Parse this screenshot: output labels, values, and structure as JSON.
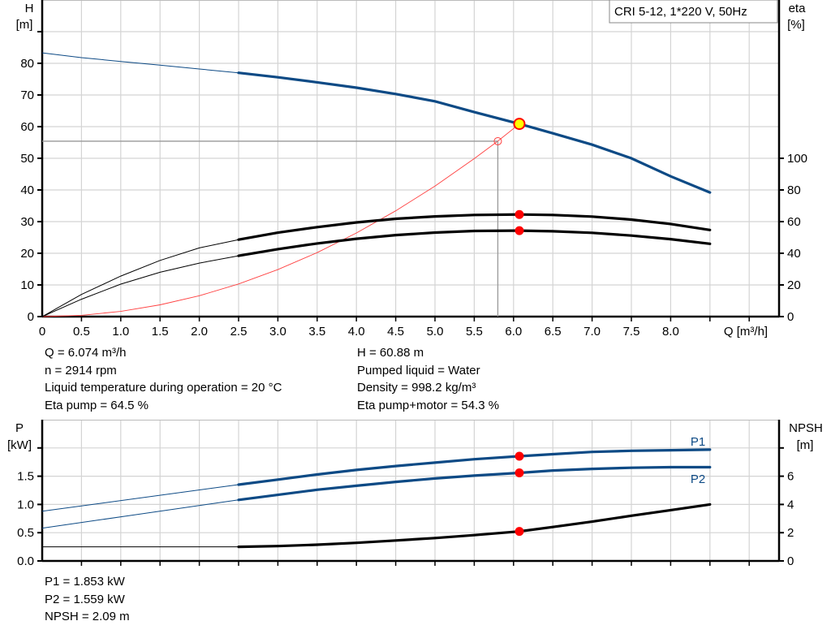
{
  "title_box": "CRI 5-12, 1*220 V, 50Hz",
  "colors": {
    "pump_curve": "#0d4a85",
    "efficiency": "#000000",
    "system_curve": "#ff4040",
    "operating_point_fill": "#ffff00",
    "marker": "#ff0000",
    "grid": "#d4d4d4"
  },
  "info_top": {
    "left": [
      "Q = 6.074 m³/h",
      "n = 2914 rpm",
      "Liquid temperature during operation = 20 °C",
      "Eta pump = 64.5 %"
    ],
    "right": [
      "H = 60.88 m",
      "Pumped liquid = Water",
      "Density = 998.2 kg/m³",
      "Eta pump+motor = 54.3 %"
    ]
  },
  "info_bottom": [
    "P1 = 1.853 kW",
    "P2 = 1.559 kW",
    "NPSH = 2.09 m"
  ],
  "chart_data": [
    {
      "type": "line",
      "title": "",
      "xlabel": "Q [m³/h]",
      "ylabel": [
        "H",
        "[m]"
      ],
      "y2label": [
        "eta",
        "[%]"
      ],
      "xlim": [
        0,
        9.38
      ],
      "ylim": [
        0,
        100
      ],
      "y2lim": [
        0,
        200
      ],
      "xticks": [
        "0",
        "0.5",
        "1.0",
        "1.5",
        "2.0",
        "2.5",
        "3.0",
        "3.5",
        "4.0",
        "4.5",
        "5.0",
        "5.5",
        "6.0",
        "6.5",
        "7.0",
        "7.5",
        "8.0"
      ],
      "yticks": [
        "0",
        "10",
        "20",
        "30",
        "40",
        "50",
        "60",
        "70",
        "80"
      ],
      "y2ticks": [
        "0",
        "20",
        "40",
        "60",
        "80",
        "100"
      ],
      "grid": true,
      "series": [
        {
          "axis": "H",
          "color": "#0d4a85",
          "points": [
            [
              0,
              83.3
            ],
            [
              0.5,
              81.8
            ],
            [
              1,
              80.6
            ],
            [
              1.5,
              79.4
            ],
            [
              2,
              78.2
            ],
            [
              2.5,
              77.0
            ],
            [
              3,
              75.6
            ],
            [
              3.5,
              74.0
            ],
            [
              4,
              72.3
            ],
            [
              4.5,
              70.3
            ],
            [
              5,
              68.0
            ],
            [
              5.5,
              64.6
            ],
            [
              6.074,
              60.88
            ],
            [
              6.5,
              57.9
            ],
            [
              7,
              54.3
            ],
            [
              7.5,
              50.0
            ],
            [
              8,
              44.3
            ],
            [
              8.5,
              39.2
            ]
          ]
        },
        {
          "axis": "eta",
          "color": "#000000",
          "points": [
            [
              0,
              0
            ],
            [
              0.5,
              14
            ],
            [
              1,
              25.6
            ],
            [
              1.5,
              35.5
            ],
            [
              2,
              43.4
            ],
            [
              2.5,
              48.6
            ],
            [
              3,
              53
            ],
            [
              3.5,
              56.5
            ],
            [
              4,
              59.5
            ],
            [
              4.5,
              61.8
            ],
            [
              5,
              63.3
            ],
            [
              5.5,
              64.2
            ],
            [
              6.074,
              64.5
            ],
            [
              6.5,
              64.2
            ],
            [
              7,
              63.2
            ],
            [
              7.5,
              61.3
            ],
            [
              8,
              58.5
            ],
            [
              8.5,
              54.7
            ]
          ]
        },
        {
          "axis": "eta",
          "color": "#000000",
          "points": [
            [
              0,
              0
            ],
            [
              0.5,
              11
            ],
            [
              1,
              20.5
            ],
            [
              1.5,
              28
            ],
            [
              2,
              33.8
            ],
            [
              2.5,
              38.4
            ],
            [
              3,
              42.6
            ],
            [
              3.5,
              46.2
            ],
            [
              4,
              49.2
            ],
            [
              4.5,
              51.5
            ],
            [
              5,
              53.1
            ],
            [
              5.5,
              54.1
            ],
            [
              6.074,
              54.3
            ],
            [
              6.5,
              53.9
            ],
            [
              7,
              52.9
            ],
            [
              7.5,
              51.2
            ],
            [
              8,
              48.9
            ],
            [
              8.5,
              46
            ]
          ]
        }
      ],
      "system_curve": [
        [
          0,
          0
        ],
        [
          0.5,
          0.41
        ],
        [
          1,
          1.65
        ],
        [
          1.5,
          3.71
        ],
        [
          2,
          6.6
        ],
        [
          2.5,
          10.3
        ],
        [
          3,
          14.85
        ],
        [
          3.5,
          20.2
        ],
        [
          4,
          26.4
        ],
        [
          4.5,
          33.4
        ],
        [
          5,
          41.2
        ],
        [
          5.5,
          49.9
        ],
        [
          5.8,
          55.4
        ],
        [
          6.074,
          60.88
        ]
      ],
      "requested_point": [
        5.8,
        55.4
      ],
      "operating_point": [
        6.074,
        60.88
      ],
      "markers": [
        {
          "axis": "eta",
          "point": [
            6.074,
            64.5
          ]
        },
        {
          "axis": "eta",
          "point": [
            6.074,
            54.3
          ]
        }
      ]
    },
    {
      "type": "line",
      "title": "",
      "ylabel": [
        "P",
        "[kW]"
      ],
      "y2label": [
        "NPSH",
        "[m]"
      ],
      "xlim": [
        0,
        9.38
      ],
      "ylim": [
        0,
        2.5
      ],
      "y2lim": [
        0,
        10
      ],
      "yticks": [
        "0.0",
        "0.5",
        "1.0",
        "1.5",
        ""
      ],
      "y2ticks": [
        "0",
        "2",
        "4",
        "6",
        ""
      ],
      "grid": true,
      "series": [
        {
          "name": "P1",
          "axis": "P",
          "color": "#0d4a85",
          "points": [
            [
              0,
              0.88
            ],
            [
              2.5,
              1.35
            ],
            [
              3,
              1.44
            ],
            [
              3.5,
              1.53
            ],
            [
              4,
              1.61
            ],
            [
              4.5,
              1.68
            ],
            [
              5,
              1.74
            ],
            [
              5.5,
              1.8
            ],
            [
              6.074,
              1.853
            ],
            [
              6.5,
              1.89
            ],
            [
              7,
              1.93
            ],
            [
              7.5,
              1.95
            ],
            [
              8,
              1.96
            ],
            [
              8.5,
              1.97
            ]
          ]
        },
        {
          "name": "P2",
          "axis": "P",
          "color": "#0d4a85",
          "points": [
            [
              0,
              0.58
            ],
            [
              2.5,
              1.08
            ],
            [
              3,
              1.17
            ],
            [
              3.5,
              1.26
            ],
            [
              4,
              1.33
            ],
            [
              4.5,
              1.4
            ],
            [
              5,
              1.46
            ],
            [
              5.5,
              1.51
            ],
            [
              6.074,
              1.559
            ],
            [
              6.5,
              1.6
            ],
            [
              7,
              1.63
            ],
            [
              7.5,
              1.65
            ],
            [
              8,
              1.66
            ],
            [
              8.5,
              1.66
            ]
          ]
        },
        {
          "axis": "NPSH",
          "color": "#000000",
          "points": [
            [
              0,
              1.0
            ],
            [
              2.5,
              1.0
            ],
            [
              3,
              1.05
            ],
            [
              3.5,
              1.15
            ],
            [
              4,
              1.28
            ],
            [
              4.5,
              1.45
            ],
            [
              5,
              1.62
            ],
            [
              5.5,
              1.83
            ],
            [
              6.074,
              2.09
            ],
            [
              6.5,
              2.4
            ],
            [
              7,
              2.78
            ],
            [
              7.5,
              3.2
            ],
            [
              8,
              3.6
            ],
            [
              8.5,
              4.0
            ]
          ]
        }
      ],
      "markers": [
        {
          "axis": "P",
          "point": [
            6.074,
            1.853
          ]
        },
        {
          "axis": "P",
          "point": [
            6.074,
            1.559
          ]
        },
        {
          "axis": "NPSH",
          "point": [
            6.074,
            2.09
          ]
        }
      ]
    }
  ]
}
